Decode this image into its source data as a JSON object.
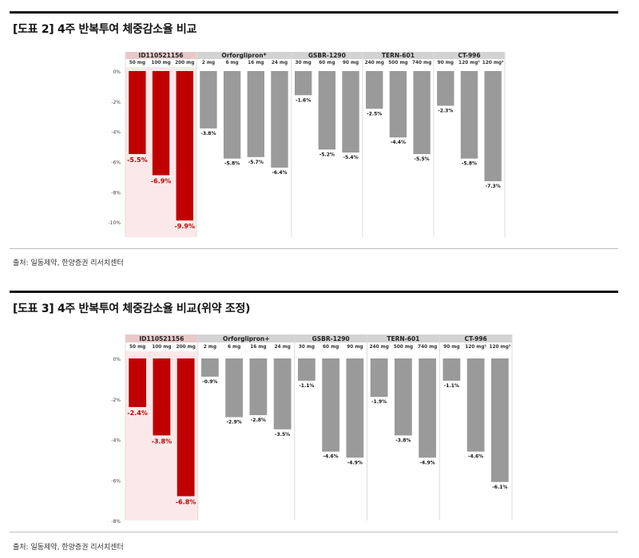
{
  "figures": [
    {
      "title": "[도표 2] 4주 반복투여 체중감소율 비교",
      "source": "출처: 일동제약, 한양증권 리서치센터"
    },
    {
      "title": "[도표 3] 4주 반복투여 체중감소율 비교(위약 조정)",
      "source": "출처: 일동제약, 한양증권 리서치센터"
    }
  ],
  "colors": {
    "highlight_bar": "#c00000",
    "other_bar": "#9a9a9a",
    "highlight_bg": "#fbe9e9",
    "header_highlight": "#e7c9c9",
    "header_other": "#d3d3d3",
    "highlight_label": "#c00000",
    "other_label": "#111111"
  },
  "chart_data": [
    {
      "type": "bar",
      "ylim": [
        -11,
        0
      ],
      "yticks": [
        0,
        -2,
        -4,
        -6,
        -8,
        -10
      ],
      "ytick_labels": [
        "0%",
        "-2%",
        "-4%",
        "-6%",
        "-8%",
        "-10%"
      ],
      "groups": [
        {
          "name": "ID110521156",
          "highlight": true,
          "categories": [
            "50 mg",
            "100 mg",
            "200 mg"
          ],
          "values": [
            -5.5,
            -6.9,
            -9.9
          ],
          "labels": [
            "-5.5%",
            "-6.9%",
            "-9.9%"
          ]
        },
        {
          "name": "Orforglipron*",
          "highlight": false,
          "categories": [
            "2 mg",
            "6 mg",
            "16 mg",
            "24 mg"
          ],
          "values": [
            -3.8,
            -5.8,
            -5.7,
            -6.4
          ],
          "labels": [
            "-3.8%",
            "-5.8%",
            "-5.7%",
            "-6.4%"
          ]
        },
        {
          "name": "GSBR-1290",
          "highlight": false,
          "categories": [
            "30 mg",
            "60 mg",
            "90 mg"
          ],
          "values": [
            -1.6,
            -5.2,
            -5.4
          ],
          "labels": [
            "-1.6%",
            "-5.2%",
            "-5.4%"
          ]
        },
        {
          "name": "TERN-601",
          "highlight": false,
          "categories": [
            "240 mg",
            "500 mg",
            "740 mg"
          ],
          "values": [
            -2.5,
            -4.4,
            -5.5
          ],
          "labels": [
            "-2.5%",
            "-4.4%",
            "-5.5%"
          ]
        },
        {
          "name": "CT-996",
          "highlight": false,
          "categories": [
            "90 mg",
            "120 mg¹",
            "120 mg²"
          ],
          "values": [
            -2.3,
            -5.8,
            -7.3
          ],
          "labels": [
            "-2.3%",
            "-5.8%",
            "-7.3%"
          ]
        }
      ]
    },
    {
      "type": "bar",
      "ylim": [
        -8,
        0
      ],
      "yticks": [
        0,
        -2,
        -4,
        -6,
        -8
      ],
      "ytick_labels": [
        "0%",
        "-2%",
        "-4%",
        "-6%",
        "-8%"
      ],
      "groups": [
        {
          "name": "ID110521156",
          "highlight": true,
          "categories": [
            "50 mg",
            "100 mg",
            "200 mg"
          ],
          "values": [
            -2.4,
            -3.8,
            -6.8
          ],
          "labels": [
            "-2.4%",
            "-3.8%",
            "-6.8%"
          ]
        },
        {
          "name": "Orforglipron+",
          "highlight": false,
          "categories": [
            "2 mg",
            "6 mg",
            "16 mg",
            "24 mg"
          ],
          "values": [
            -0.9,
            -2.9,
            -2.8,
            -3.5
          ],
          "labels": [
            "-0.9%",
            "-2.9%",
            "-2.8%",
            "-3.5%"
          ]
        },
        {
          "name": "GSBR-1290",
          "highlight": false,
          "categories": [
            "30 mg",
            "60 mg",
            "90 mg"
          ],
          "values": [
            -1.1,
            -4.6,
            -4.9
          ],
          "labels": [
            "-1.1%",
            "-4.6%",
            "-4.9%"
          ]
        },
        {
          "name": "TERN-601",
          "highlight": false,
          "categories": [
            "240 mg",
            "500 mg",
            "740 mg"
          ],
          "values": [
            -1.9,
            -3.8,
            -4.9
          ],
          "labels": [
            "-1.9%",
            "-3.8%",
            "-4.9%"
          ]
        },
        {
          "name": "CT-996",
          "highlight": false,
          "categories": [
            "90 mg",
            "120 mg¹",
            "120 mg²"
          ],
          "values": [
            -1.1,
            -4.6,
            -6.1
          ],
          "labels": [
            "-1.1%",
            "-4.6%",
            "-6.1%"
          ]
        }
      ]
    }
  ]
}
